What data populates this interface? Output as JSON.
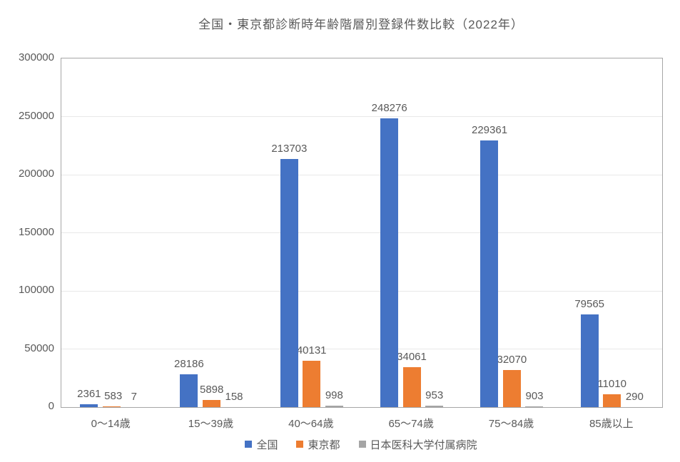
{
  "title": "全国・東京都診断時年齢階層別登録件数比較（2022年）",
  "colors": {
    "series_blue": "#4472C4",
    "series_orange": "#ED7D31",
    "series_gray": "#A5A5A5",
    "text": "#595959",
    "grid": "#E8E8E8",
    "plot_border": "#A6A6A6",
    "background": "#FFFFFF"
  },
  "chart_data": {
    "type": "bar",
    "title": "全国・東京都診断時年齢階層別登録件数比較（2022年）",
    "categories": [
      "0〜14歳",
      "15〜39歳",
      "40〜64歳",
      "65〜74歳",
      "75〜84歳",
      "85歳以上"
    ],
    "series": [
      {
        "name": "全国",
        "color": "#4472C4",
        "values": [
          2361,
          28186,
          213703,
          248276,
          229361,
          79565
        ]
      },
      {
        "name": "東京都",
        "color": "#ED7D31",
        "values": [
          583,
          5898,
          40131,
          34061,
          32070,
          11010
        ]
      },
      {
        "name": "日本医科大学付属病院",
        "color": "#A5A5A5",
        "values": [
          7,
          158,
          998,
          953,
          903,
          290
        ]
      }
    ],
    "ylim": [
      0,
      300000
    ],
    "ytick_step": 50000,
    "yticks": [
      "300000",
      "250000",
      "200000",
      "150000",
      "100000",
      "50000",
      "0"
    ],
    "grid": true,
    "data_labels": true,
    "legend_position": "bottom"
  }
}
